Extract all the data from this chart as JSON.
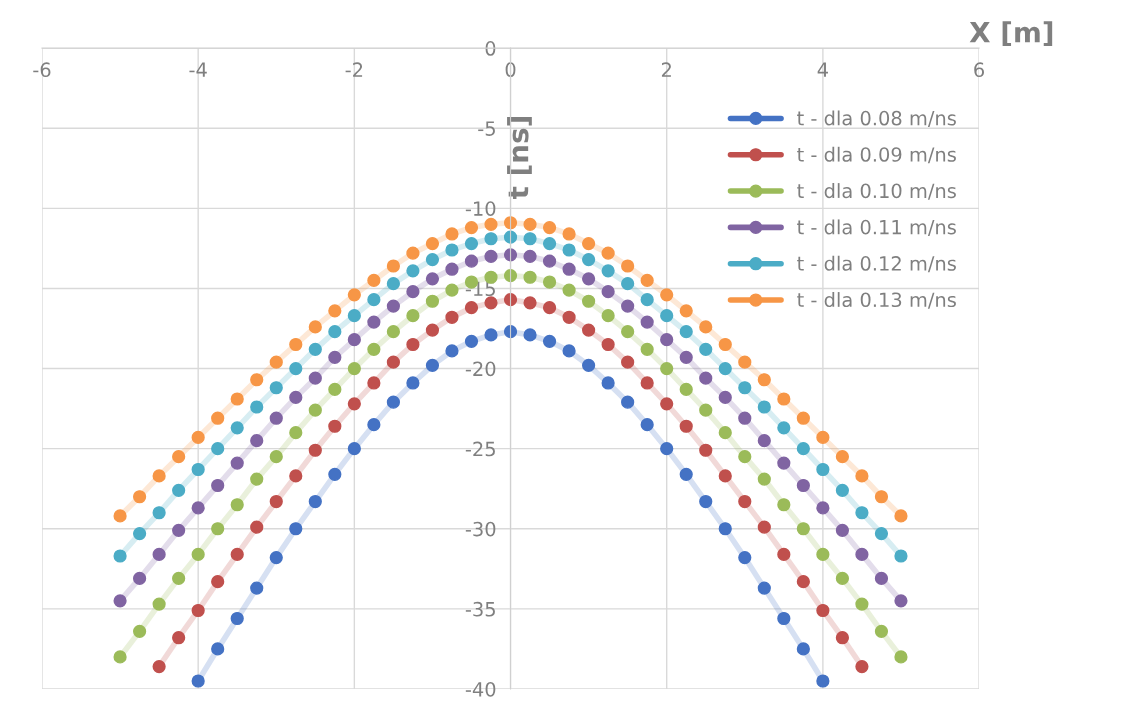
{
  "chart_data": {
    "type": "line",
    "xlabel": "X [m]",
    "ylabel": "t [ns]",
    "x": [
      -5,
      -4.75,
      -4.5,
      -4.25,
      -4,
      -3.75,
      -3.5,
      -3.25,
      -3,
      -2.75,
      -2.5,
      -2.25,
      -2,
      -1.75,
      -1.5,
      -1.25,
      -1,
      -0.75,
      -0.5,
      -0.25,
      0,
      0.25,
      0.5,
      0.75,
      1,
      1.25,
      1.5,
      1.75,
      2,
      2.25,
      2.5,
      2.75,
      3,
      3.25,
      3.5,
      3.75,
      4,
      4.25,
      4.5,
      4.75,
      5
    ],
    "xlim": [
      -6,
      6
    ],
    "xticks": [
      -6,
      -4,
      -2,
      0,
      2,
      4,
      6
    ],
    "ylim": [
      -40,
      0
    ],
    "yticks": [
      -40,
      -35,
      -30,
      -25,
      -20,
      -15,
      -10,
      -5,
      0
    ],
    "grid": true,
    "legend": "top right",
    "marker": "circle",
    "line_style": "solid",
    "series": [
      {
        "name": "t - dla 0.08 m/ns",
        "color": "#4472c4",
        "values": [
          null,
          null,
          null,
          null,
          -39.5,
          -37.5,
          -35.6,
          -33.7,
          -31.8,
          -30.0,
          -28.3,
          -26.6,
          -25.0,
          -23.5,
          -22.1,
          -20.9,
          -19.8,
          -18.9,
          -18.3,
          -17.9,
          -17.7,
          -17.9,
          -18.3,
          -18.9,
          -19.8,
          -20.9,
          -22.1,
          -23.5,
          -25.0,
          -26.6,
          -28.3,
          -30.0,
          -31.8,
          -33.7,
          -35.6,
          -37.5,
          -39.5,
          null,
          null,
          null,
          null
        ]
      },
      {
        "name": "t - dla 0.09 m/ns",
        "color": "#c0504d",
        "values": [
          null,
          null,
          -38.6,
          -36.8,
          -35.1,
          -33.3,
          -31.6,
          -29.9,
          -28.3,
          -26.7,
          -25.1,
          -23.6,
          -22.2,
          -20.9,
          -19.6,
          -18.5,
          -17.6,
          -16.8,
          -16.2,
          -15.9,
          -15.7,
          -15.9,
          -16.2,
          -16.8,
          -17.6,
          -18.5,
          -19.6,
          -20.9,
          -22.2,
          -23.6,
          -25.1,
          -26.7,
          -28.3,
          -29.9,
          -31.6,
          -33.3,
          -35.1,
          -36.8,
          -38.6,
          null,
          null
        ]
      },
      {
        "name": "t - dla 0.10 m/ns",
        "color": "#9bbb59",
        "values": [
          -38.0,
          -36.4,
          -34.7,
          -33.1,
          -31.6,
          -30.0,
          -28.5,
          -26.9,
          -25.5,
          -24.0,
          -22.6,
          -21.3,
          -20.0,
          -18.8,
          -17.7,
          -16.7,
          -15.8,
          -15.1,
          -14.6,
          -14.3,
          -14.2,
          -14.3,
          -14.6,
          -15.1,
          -15.8,
          -16.7,
          -17.7,
          -18.8,
          -20.0,
          -21.3,
          -22.6,
          -24.0,
          -25.5,
          -26.9,
          -28.5,
          -30.0,
          -31.6,
          -33.1,
          -34.7,
          -36.4,
          -38.0
        ]
      },
      {
        "name": "t - dla 0.11 m/ns",
        "color": "#8064a2",
        "values": [
          -34.5,
          -33.1,
          -31.6,
          -30.1,
          -28.7,
          -27.3,
          -25.9,
          -24.5,
          -23.1,
          -21.8,
          -20.6,
          -19.3,
          -18.2,
          -17.1,
          -16.1,
          -15.2,
          -14.4,
          -13.8,
          -13.3,
          -13.0,
          -12.9,
          -13.0,
          -13.3,
          -13.8,
          -14.4,
          -15.2,
          -16.1,
          -17.1,
          -18.2,
          -19.3,
          -20.6,
          -21.8,
          -23.1,
          -24.5,
          -25.9,
          -27.3,
          -28.7,
          -30.1,
          -31.6,
          -33.1,
          -34.5
        ]
      },
      {
        "name": "t - dla 0.12 m/ns",
        "color": "#4bacc6",
        "values": [
          -31.7,
          -30.3,
          -29.0,
          -27.6,
          -26.3,
          -25.0,
          -23.7,
          -22.4,
          -21.2,
          -20.0,
          -18.8,
          -17.7,
          -16.7,
          -15.7,
          -14.7,
          -13.9,
          -13.2,
          -12.6,
          -12.2,
          -11.9,
          -11.8,
          -11.9,
          -12.2,
          -12.6,
          -13.2,
          -13.9,
          -14.7,
          -15.7,
          -16.7,
          -17.7,
          -18.8,
          -20.0,
          -21.2,
          -22.4,
          -23.7,
          -25.0,
          -26.3,
          -27.6,
          -29.0,
          -30.3,
          -31.7
        ]
      },
      {
        "name": "t - dla 0.13 m/ns",
        "color": "#f79646",
        "values": [
          -29.2,
          -28.0,
          -26.7,
          -25.5,
          -24.3,
          -23.1,
          -21.9,
          -20.7,
          -19.6,
          -18.5,
          -17.4,
          -16.4,
          -15.4,
          -14.5,
          -13.6,
          -12.8,
          -12.2,
          -11.6,
          -11.2,
          -11.0,
          -10.9,
          -11.0,
          -11.2,
          -11.6,
          -12.2,
          -12.8,
          -13.6,
          -14.5,
          -15.4,
          -16.4,
          -17.4,
          -18.5,
          -19.6,
          -20.7,
          -21.9,
          -23.1,
          -24.3,
          -25.5,
          -26.7,
          -28.0,
          -29.2
        ]
      }
    ]
  }
}
